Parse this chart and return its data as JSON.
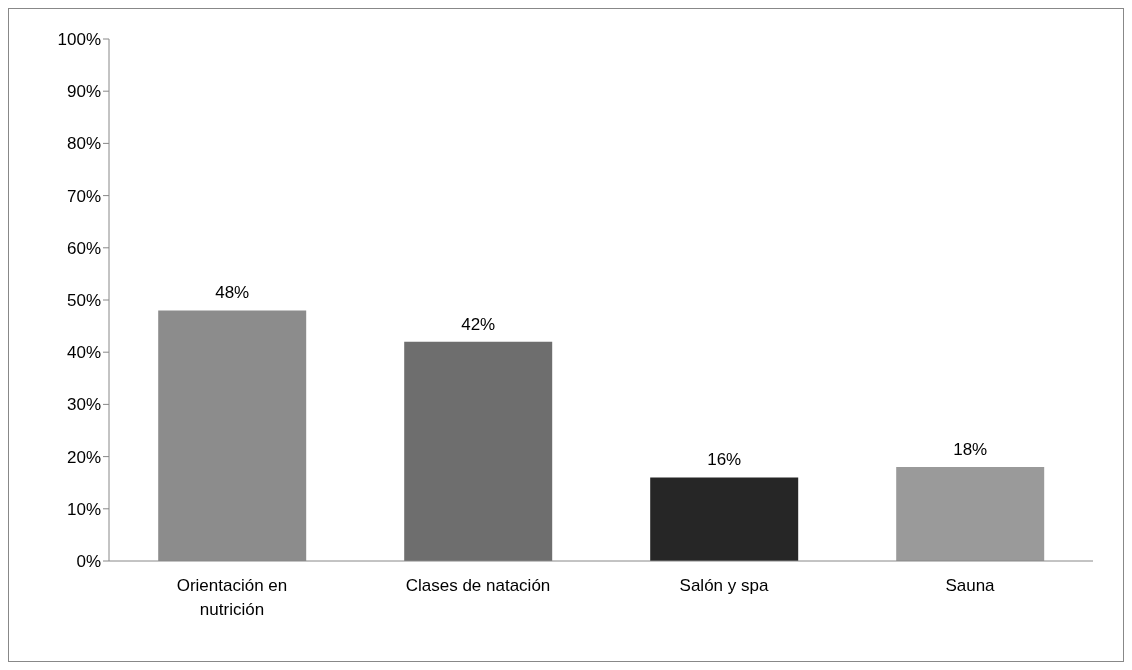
{
  "chart_data": {
    "type": "bar",
    "categories": [
      "Orientación en nutrición",
      "Clases de natación",
      "Salón y spa",
      "Sauna"
    ],
    "values": [
      48,
      42,
      16,
      18
    ],
    "colors": [
      "#8c8c8c",
      "#6e6e6e",
      "#262626",
      "#9a9a9a"
    ],
    "value_labels": [
      "48%",
      "42%",
      "16%",
      "18%"
    ],
    "ylim": [
      0,
      100
    ],
    "yticks": [
      {
        "value": 0,
        "label": "0%"
      },
      {
        "value": 10,
        "label": "10%"
      },
      {
        "value": 20,
        "label": "20%"
      },
      {
        "value": 30,
        "label": "30%"
      },
      {
        "value": 40,
        "label": "40%"
      },
      {
        "value": 50,
        "label": "50%"
      },
      {
        "value": 60,
        "label": "60%"
      },
      {
        "value": 70,
        "label": "70%"
      },
      {
        "value": 80,
        "label": "80%"
      },
      {
        "value": 90,
        "label": "90%"
      },
      {
        "value": 100,
        "label": "100%"
      }
    ],
    "grid": false,
    "legend": false
  }
}
